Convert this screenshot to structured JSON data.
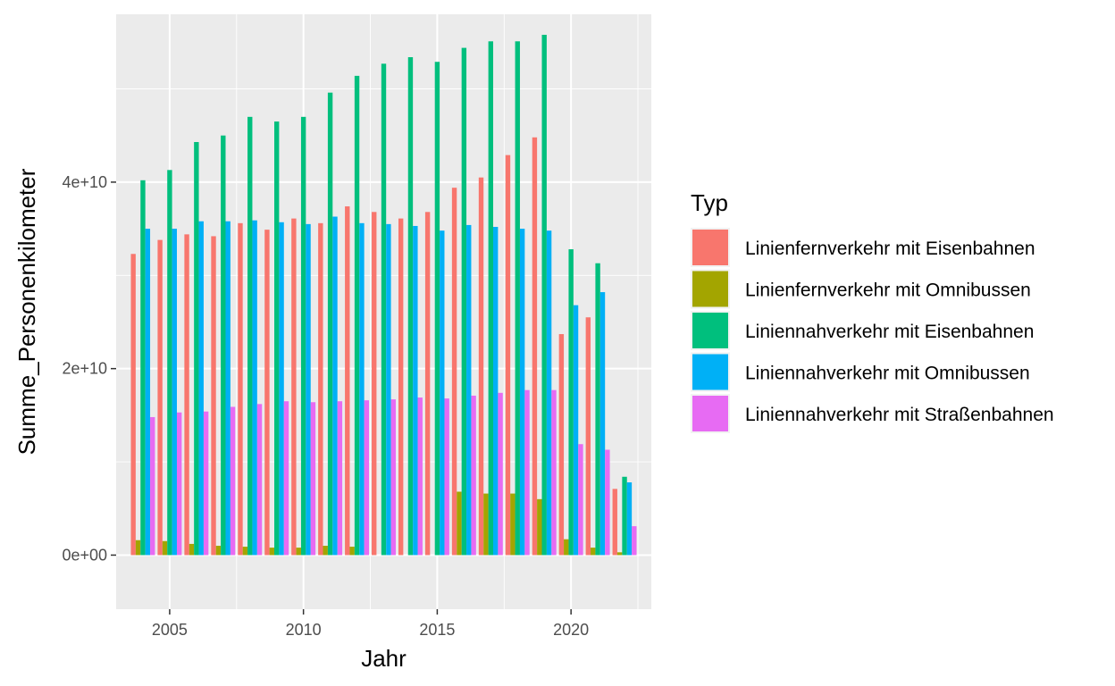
{
  "chart_data": {
    "type": "bar",
    "title": "",
    "xlabel": "Jahr",
    "ylabel": "Summe_Personenkilometer",
    "legend_title": "Typ",
    "legend_position": "right",
    "x": [
      2004,
      2005,
      2006,
      2007,
      2008,
      2009,
      2010,
      2011,
      2012,
      2013,
      2014,
      2015,
      2016,
      2017,
      2018,
      2019,
      2020,
      2021,
      2022
    ],
    "xlim": [
      2003.0,
      2023.0
    ],
    "xticks": [
      2005,
      2010,
      2015,
      2020
    ],
    "xtick_labels": [
      "2005",
      "2010",
      "2015",
      "2020"
    ],
    "ylim": [
      -5800000000.0,
      58000000000.0
    ],
    "yticks": [
      0,
      20000000000,
      40000000000
    ],
    "ytick_labels": [
      "0e+00",
      "2e+10",
      "4e+10"
    ],
    "grid": true,
    "series": [
      {
        "name": "Linienfernverkehr mit Eisenbahnen",
        "color": "#F8766D",
        "values": [
          32300000000.0,
          33800000000.0,
          34400000000.0,
          34200000000.0,
          35600000000.0,
          34900000000.0,
          36100000000.0,
          35600000000.0,
          37400000000.0,
          36800000000.0,
          36100000000.0,
          36800000000.0,
          39400000000.0,
          40500000000.0,
          42900000000.0,
          44800000000.0,
          23700000000.0,
          25500000000.0,
          7100000000.0
        ]
      },
      {
        "name": "Linienfernverkehr mit Omnibussen",
        "color": "#A3A500",
        "values": [
          1600000000.0,
          1500000000.0,
          1200000000.0,
          1000000000.0,
          900000000.0,
          800000000.0,
          800000000.0,
          1000000000.0,
          900000000.0,
          0,
          0,
          0,
          6800000000.0,
          6600000000.0,
          6600000000.0,
          6000000000.0,
          1700000000.0,
          800000000.0,
          300000000.0
        ]
      },
      {
        "name": "Liniennahverkehr mit Eisenbahnen",
        "color": "#00BF7D",
        "values": [
          40200000000.0,
          41300000000.0,
          44300000000.0,
          45000000000.0,
          47000000000.0,
          46500000000.0,
          47000000000.0,
          49600000000.0,
          51400000000.0,
          52700000000.0,
          53400000000.0,
          52900000000.0,
          54400000000.0,
          55100000000.0,
          55100000000.0,
          55800000000.0,
          32800000000.0,
          31300000000.0,
          8400000000.0
        ]
      },
      {
        "name": "Liniennahverkehr mit Omnibussen",
        "color": "#00B0F6",
        "values": [
          35000000000.0,
          35000000000.0,
          35800000000.0,
          35800000000.0,
          35900000000.0,
          35700000000.0,
          35500000000.0,
          36300000000.0,
          35600000000.0,
          35500000000.0,
          35300000000.0,
          34800000000.0,
          35400000000.0,
          35200000000.0,
          35000000000.0,
          34800000000.0,
          26800000000.0,
          28200000000.0,
          7800000000.0
        ]
      },
      {
        "name": "Liniennahverkehr mit Straßenbahnen",
        "color": "#E76BF3",
        "values": [
          14800000000.0,
          15300000000.0,
          15400000000.0,
          15900000000.0,
          16200000000.0,
          16500000000.0,
          16400000000.0,
          16500000000.0,
          16600000000.0,
          16700000000.0,
          16900000000.0,
          16800000000.0,
          17100000000.0,
          17400000000.0,
          17700000000.0,
          17700000000.0,
          11900000000.0,
          11300000000.0,
          3100000000.0
        ]
      }
    ]
  },
  "colors": {
    "panel_background": "#EBEBEB",
    "grid_major": "#FFFFFF",
    "tick_text": "#4D4D4D"
  }
}
